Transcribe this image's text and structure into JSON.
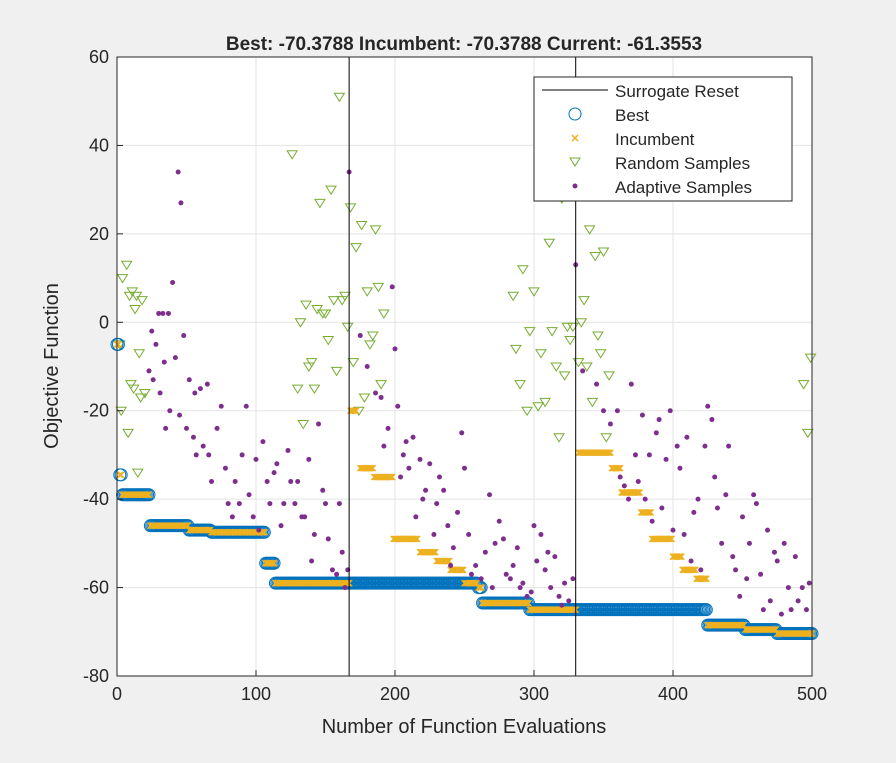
{
  "chart_data": {
    "type": "scatter",
    "title": "Best: -70.3788 Incumbent: -70.3788 Current: -61.3553",
    "xlabel": "Number of Function Evaluations",
    "ylabel": "Objective Function",
    "xlim": [
      0,
      500
    ],
    "ylim": [
      -80,
      60
    ],
    "xticks": [
      0,
      100,
      200,
      300,
      400,
      500
    ],
    "yticks": [
      -80,
      -60,
      -40,
      -20,
      0,
      20,
      40,
      60
    ],
    "grid": true,
    "legend_position": "top-right",
    "legend": [
      "Surrogate Reset",
      "Best",
      "Incumbent",
      "Random Samples",
      "Adaptive Samples"
    ],
    "colors": {
      "reset": "#000000",
      "best": "#0072BD",
      "incumbent": "#EDB120",
      "random": "#77AC30",
      "adaptive": "#7E2F8E"
    },
    "surrogate_resets": [
      167,
      330
    ],
    "best_steps": [
      {
        "from": 0,
        "to": 1,
        "value": -5
      },
      {
        "from": 2,
        "to": 3,
        "value": -34.5
      },
      {
        "from": 4,
        "to": 23,
        "value": -39
      },
      {
        "from": 24,
        "to": 51,
        "value": -46
      },
      {
        "from": 52,
        "to": 67,
        "value": -47
      },
      {
        "from": 68,
        "to": 106,
        "value": -47.5
      },
      {
        "from": 107,
        "to": 113,
        "value": -54.5
      },
      {
        "from": 114,
        "to": 259,
        "value": -59
      },
      {
        "from": 260,
        "to": 262,
        "value": -60
      },
      {
        "from": 263,
        "to": 296,
        "value": -63.5
      },
      {
        "from": 297,
        "to": 424,
        "value": -65
      },
      {
        "from": 425,
        "to": 451,
        "value": -68.5
      },
      {
        "from": 452,
        "to": 474,
        "value": -69.5
      },
      {
        "from": 475,
        "to": 500,
        "value": -70.4
      }
    ],
    "incumbent_steps": [
      {
        "from": 0,
        "to": 1,
        "value": -5
      },
      {
        "from": 2,
        "to": 3,
        "value": -34.5
      },
      {
        "from": 4,
        "to": 23,
        "value": -39
      },
      {
        "from": 24,
        "to": 51,
        "value": -46
      },
      {
        "from": 52,
        "to": 67,
        "value": -47
      },
      {
        "from": 68,
        "to": 106,
        "value": -47.5
      },
      {
        "from": 107,
        "to": 113,
        "value": -54.5
      },
      {
        "from": 114,
        "to": 167,
        "value": -59
      },
      {
        "from": 168,
        "to": 172,
        "value": -20
      },
      {
        "from": 175,
        "to": 184,
        "value": -33
      },
      {
        "from": 185,
        "to": 198,
        "value": -35
      },
      {
        "from": 199,
        "to": 216,
        "value": -49
      },
      {
        "from": 218,
        "to": 229,
        "value": -52
      },
      {
        "from": 230,
        "to": 239,
        "value": -54
      },
      {
        "from": 240,
        "to": 249,
        "value": -56
      },
      {
        "from": 250,
        "to": 259,
        "value": -59
      },
      {
        "from": 260,
        "to": 262,
        "value": -60
      },
      {
        "from": 263,
        "to": 296,
        "value": -63.5
      },
      {
        "from": 297,
        "to": 330,
        "value": -65
      },
      {
        "from": 332,
        "to": 355,
        "value": -29.5
      },
      {
        "from": 356,
        "to": 362,
        "value": -33
      },
      {
        "from": 363,
        "to": 376,
        "value": -38.5
      },
      {
        "from": 377,
        "to": 384,
        "value": -43
      },
      {
        "from": 385,
        "to": 399,
        "value": -49
      },
      {
        "from": 400,
        "to": 406,
        "value": -53
      },
      {
        "from": 407,
        "to": 416,
        "value": -56
      },
      {
        "from": 417,
        "to": 424,
        "value": -58
      },
      {
        "from": 425,
        "to": 451,
        "value": -68.5
      },
      {
        "from": 452,
        "to": 474,
        "value": -69.5
      },
      {
        "from": 475,
        "to": 500,
        "value": -70.4
      }
    ],
    "random_samples": [
      [
        2,
        -5
      ],
      [
        3,
        -20
      ],
      [
        4,
        10
      ],
      [
        7,
        13
      ],
      [
        8,
        -25
      ],
      [
        9,
        6
      ],
      [
        10,
        -14
      ],
      [
        11,
        7
      ],
      [
        12,
        -15
      ],
      [
        13,
        3
      ],
      [
        14,
        6
      ],
      [
        15,
        -34
      ],
      [
        16,
        -7
      ],
      [
        17,
        -17
      ],
      [
        18,
        5
      ],
      [
        20,
        -16
      ],
      [
        126,
        38
      ],
      [
        130,
        -15
      ],
      [
        132,
        0
      ],
      [
        134,
        -23
      ],
      [
        136,
        4
      ],
      [
        138,
        -10
      ],
      [
        140,
        -9
      ],
      [
        142,
        -15
      ],
      [
        144,
        3
      ],
      [
        146,
        27
      ],
      [
        148,
        2
      ],
      [
        150,
        2
      ],
      [
        152,
        -4
      ],
      [
        154,
        30
      ],
      [
        156,
        5
      ],
      [
        158,
        -11
      ],
      [
        160,
        51
      ],
      [
        162,
        5
      ],
      [
        164,
        6
      ],
      [
        166,
        -1
      ],
      [
        168,
        26
      ],
      [
        170,
        -9
      ],
      [
        172,
        17
      ],
      [
        174,
        -20
      ],
      [
        176,
        22
      ],
      [
        178,
        -17
      ],
      [
        180,
        7
      ],
      [
        182,
        -5
      ],
      [
        184,
        -3
      ],
      [
        186,
        21
      ],
      [
        188,
        8
      ],
      [
        190,
        -14
      ],
      [
        192,
        2
      ],
      [
        285,
        6
      ],
      [
        287,
        -6
      ],
      [
        290,
        -14
      ],
      [
        292,
        12
      ],
      [
        295,
        -20
      ],
      [
        297,
        -2
      ],
      [
        300,
        7
      ],
      [
        303,
        -19
      ],
      [
        305,
        -7
      ],
      [
        308,
        -18
      ],
      [
        311,
        18
      ],
      [
        313,
        -2
      ],
      [
        316,
        -10
      ],
      [
        318,
        -26
      ],
      [
        320,
        28
      ],
      [
        322,
        -12
      ],
      [
        324,
        -1
      ],
      [
        326,
        -4
      ],
      [
        328,
        -1
      ],
      [
        332,
        -9
      ],
      [
        334,
        0
      ],
      [
        336,
        5
      ],
      [
        338,
        -10
      ],
      [
        340,
        21
      ],
      [
        342,
        -18
      ],
      [
        344,
        15
      ],
      [
        346,
        -3
      ],
      [
        348,
        -7
      ],
      [
        350,
        16
      ],
      [
        352,
        -26
      ],
      [
        354,
        -12
      ],
      [
        494,
        -14
      ],
      [
        497,
        -25
      ],
      [
        499,
        -8
      ]
    ],
    "adaptive_samples": [
      [
        44,
        34
      ],
      [
        46,
        27
      ],
      [
        40,
        9
      ],
      [
        30,
        2
      ],
      [
        33,
        2
      ],
      [
        37,
        2
      ],
      [
        25,
        -2
      ],
      [
        28,
        -5
      ],
      [
        34,
        -9
      ],
      [
        42,
        -8
      ],
      [
        48,
        -3
      ],
      [
        23,
        -11
      ],
      [
        26,
        -13
      ],
      [
        31,
        -16
      ],
      [
        38,
        -20
      ],
      [
        45,
        -21
      ],
      [
        35,
        -24
      ],
      [
        50,
        -24
      ],
      [
        55,
        -26
      ],
      [
        52,
        -13
      ],
      [
        56,
        -16
      ],
      [
        60,
        -15
      ],
      [
        65,
        -14
      ],
      [
        57,
        -30
      ],
      [
        62,
        -28
      ],
      [
        66,
        -30
      ],
      [
        68,
        -36
      ],
      [
        72,
        -24
      ],
      [
        75,
        -19
      ],
      [
        78,
        -33
      ],
      [
        80,
        -41
      ],
      [
        83,
        -44
      ],
      [
        85,
        -36
      ],
      [
        88,
        -41
      ],
      [
        90,
        -30
      ],
      [
        93,
        -19
      ],
      [
        95,
        -39
      ],
      [
        98,
        -44
      ],
      [
        100,
        -31
      ],
      [
        102,
        -47
      ],
      [
        105,
        -27
      ],
      [
        108,
        -36
      ],
      [
        110,
        -41
      ],
      [
        113,
        -34
      ],
      [
        115,
        -32
      ],
      [
        118,
        -46
      ],
      [
        120,
        -41
      ],
      [
        123,
        -29
      ],
      [
        125,
        -36
      ],
      [
        128,
        -41
      ],
      [
        130,
        -36
      ],
      [
        133,
        -44
      ],
      [
        135,
        -44
      ],
      [
        138,
        -31
      ],
      [
        140,
        -54
      ],
      [
        142,
        -48
      ],
      [
        145,
        -23
      ],
      [
        148,
        -38
      ],
      [
        150,
        -41
      ],
      [
        152,
        -49
      ],
      [
        155,
        -56
      ],
      [
        158,
        -57
      ],
      [
        160,
        -41
      ],
      [
        162,
        -52
      ],
      [
        164,
        -60
      ],
      [
        166,
        -56
      ],
      [
        167,
        34
      ],
      [
        175,
        -3
      ],
      [
        180,
        -10
      ],
      [
        186,
        -16
      ],
      [
        190,
        -17
      ],
      [
        192,
        -28
      ],
      [
        195,
        -24
      ],
      [
        198,
        8
      ],
      [
        200,
        -6
      ],
      [
        202,
        -19
      ],
      [
        204,
        -35
      ],
      [
        206,
        -30
      ],
      [
        208,
        -27
      ],
      [
        210,
        -33
      ],
      [
        213,
        -26
      ],
      [
        215,
        -44
      ],
      [
        218,
        -31
      ],
      [
        220,
        -40
      ],
      [
        222,
        -38
      ],
      [
        225,
        -32
      ],
      [
        228,
        -48
      ],
      [
        230,
        -41
      ],
      [
        232,
        -35
      ],
      [
        235,
        -38
      ],
      [
        238,
        -46
      ],
      [
        240,
        -55
      ],
      [
        242,
        -51
      ],
      [
        245,
        -43
      ],
      [
        248,
        -25
      ],
      [
        250,
        -33
      ],
      [
        253,
        -48
      ],
      [
        255,
        -57
      ],
      [
        258,
        -55
      ],
      [
        262,
        -58
      ],
      [
        265,
        -52
      ],
      [
        268,
        -39
      ],
      [
        270,
        -60
      ],
      [
        272,
        -50
      ],
      [
        275,
        -45
      ],
      [
        278,
        -49
      ],
      [
        280,
        -57
      ],
      [
        283,
        -58
      ],
      [
        285,
        -55
      ],
      [
        288,
        -51
      ],
      [
        290,
        -60
      ],
      [
        292,
        -59
      ],
      [
        295,
        -62
      ],
      [
        298,
        -61
      ],
      [
        300,
        -46
      ],
      [
        302,
        -54
      ],
      [
        305,
        -48
      ],
      [
        308,
        -56
      ],
      [
        310,
        -52
      ],
      [
        312,
        -60
      ],
      [
        315,
        -53
      ],
      [
        318,
        -62
      ],
      [
        320,
        -64
      ],
      [
        322,
        -59
      ],
      [
        325,
        -63
      ],
      [
        328,
        -58
      ],
      [
        330,
        13
      ],
      [
        335,
        -11
      ],
      [
        345,
        -14
      ],
      [
        350,
        -20
      ],
      [
        355,
        -23
      ],
      [
        360,
        -20
      ],
      [
        362,
        -35
      ],
      [
        365,
        -37
      ],
      [
        368,
        -40
      ],
      [
        370,
        -14
      ],
      [
        373,
        -30
      ],
      [
        375,
        -36
      ],
      [
        378,
        -21
      ],
      [
        380,
        -40
      ],
      [
        383,
        -30
      ],
      [
        385,
        -45
      ],
      [
        388,
        -25
      ],
      [
        390,
        -22
      ],
      [
        392,
        -42
      ],
      [
        395,
        -31
      ],
      [
        398,
        -20
      ],
      [
        400,
        -47
      ],
      [
        403,
        -28
      ],
      [
        405,
        -33
      ],
      [
        408,
        -48
      ],
      [
        410,
        -26
      ],
      [
        413,
        -54
      ],
      [
        415,
        -43
      ],
      [
        418,
        -40
      ],
      [
        420,
        -56
      ],
      [
        423,
        -28
      ],
      [
        425,
        -19
      ],
      [
        428,
        -22
      ],
      [
        430,
        -35
      ],
      [
        432,
        -42
      ],
      [
        435,
        -50
      ],
      [
        438,
        -39
      ],
      [
        440,
        -28
      ],
      [
        443,
        -53
      ],
      [
        445,
        -56
      ],
      [
        448,
        -62
      ],
      [
        450,
        -44
      ],
      [
        453,
        -58
      ],
      [
        455,
        -50
      ],
      [
        458,
        -39
      ],
      [
        460,
        -41
      ],
      [
        463,
        -57
      ],
      [
        465,
        -65
      ],
      [
        468,
        -47
      ],
      [
        470,
        -63
      ],
      [
        473,
        -52
      ],
      [
        475,
        -54
      ],
      [
        478,
        -66
      ],
      [
        480,
        -50
      ],
      [
        483,
        -60
      ],
      [
        485,
        -65
      ],
      [
        488,
        -53
      ],
      [
        490,
        -63
      ],
      [
        493,
        -60
      ],
      [
        496,
        -65
      ],
      [
        498,
        -59
      ]
    ]
  }
}
